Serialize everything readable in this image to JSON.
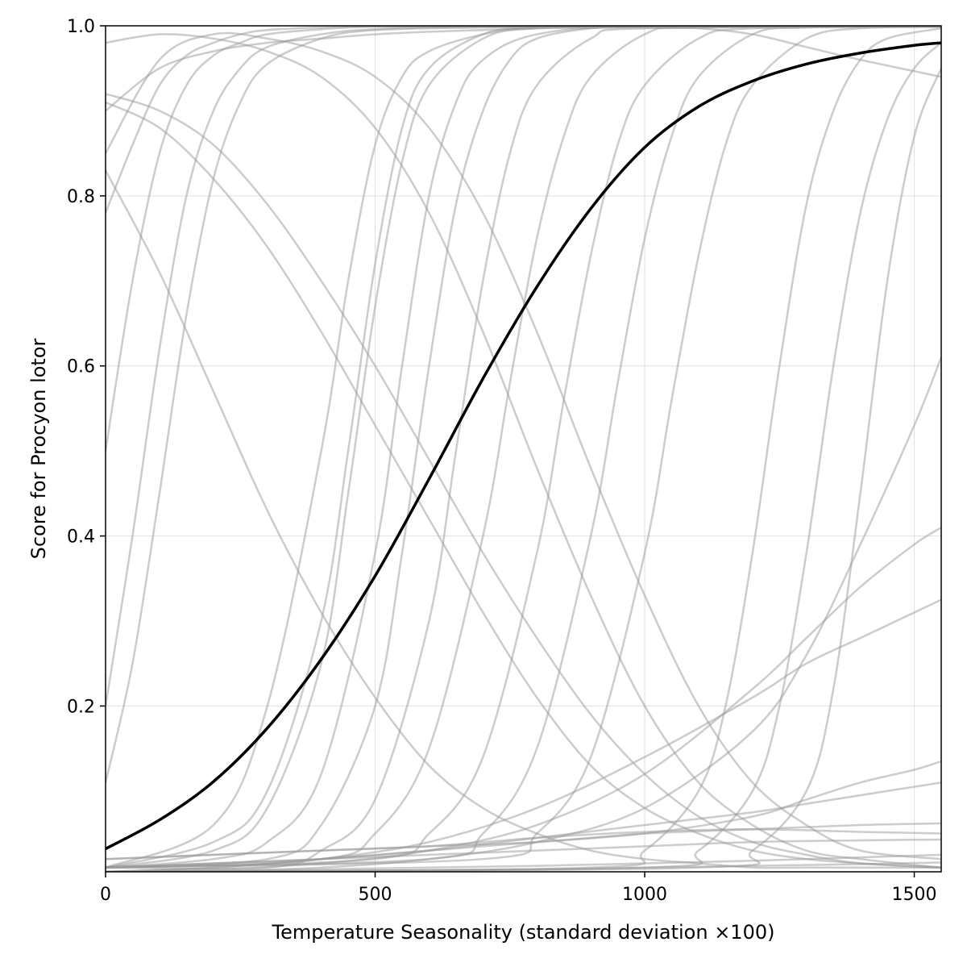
{
  "chart_data": {
    "type": "line",
    "xlabel": "Temperature Seasonality (standard deviation ×100)",
    "ylabel": "Score for Procyon lotor",
    "xlim": [
      0,
      1550
    ],
    "ylim": [
      0.005,
      1.0
    ],
    "x_ticks": [
      {
        "value": 0,
        "label": "0"
      },
      {
        "value": 500,
        "label": "500"
      },
      {
        "value": 1000,
        "label": "1000"
      },
      {
        "value": 1500,
        "label": "1500"
      }
    ],
    "y_ticks": [
      {
        "value": 0.2,
        "label": "0.2"
      },
      {
        "value": 0.4,
        "label": "0.4"
      },
      {
        "value": 0.6,
        "label": "0.6"
      },
      {
        "value": 0.8,
        "label": "0.8"
      },
      {
        "value": 1.0,
        "label": "1.0"
      }
    ],
    "grid": true,
    "mean_curve": {
      "color": "#000000",
      "x": [
        0,
        100,
        200,
        300,
        400,
        500,
        600,
        700,
        800,
        900,
        1000,
        1100,
        1200,
        1300,
        1400,
        1500,
        1550
      ],
      "y": [
        0.032,
        0.066,
        0.111,
        0.174,
        0.255,
        0.353,
        0.467,
        0.585,
        0.693,
        0.785,
        0.857,
        0.905,
        0.935,
        0.955,
        0.968,
        0.977,
        0.98
      ]
    },
    "sample_curves": {
      "color": "#9a9a9a",
      "series": [
        {
          "x": [
            0,
            50,
            100,
            150,
            200,
            250,
            300,
            400,
            500,
            700,
            900,
            1100,
            1300,
            1550
          ],
          "y": [
            0.78,
            0.86,
            0.93,
            0.965,
            0.98,
            0.99,
            0.995,
            0.998,
            0.999,
            0.999,
            0.999,
            0.999,
            0.999,
            0.999
          ]
        },
        {
          "x": [
            0,
            50,
            100,
            150,
            200,
            250,
            300,
            400,
            500,
            700,
            900,
            1100,
            1300,
            1550
          ],
          "y": [
            0.11,
            0.25,
            0.45,
            0.66,
            0.82,
            0.91,
            0.955,
            0.985,
            0.995,
            0.998,
            0.999,
            0.999,
            0.999,
            0.999
          ]
        },
        {
          "x": [
            0,
            50,
            100,
            150,
            200,
            250,
            300,
            400,
            500,
            700,
            900,
            1100,
            1300,
            1550
          ],
          "y": [
            0.2,
            0.4,
            0.62,
            0.8,
            0.9,
            0.95,
            0.975,
            0.99,
            0.996,
            0.999,
            0.999,
            0.999,
            0.999,
            0.999
          ]
        },
        {
          "x": [
            0,
            50,
            100,
            150,
            200,
            250,
            300,
            400,
            500,
            700,
            900,
            1100,
            1300,
            1550
          ],
          "y": [
            0.5,
            0.7,
            0.85,
            0.93,
            0.965,
            0.98,
            0.99,
            0.996,
            0.999,
            0.999,
            0.999,
            0.999,
            0.999,
            0.999
          ]
        },
        {
          "x": [
            0,
            100,
            200,
            300,
            400,
            500,
            600,
            700,
            800,
            900,
            1000,
            1100,
            1200,
            1300,
            1400,
            1550
          ],
          "y": [
            0.92,
            0.9,
            0.86,
            0.79,
            0.7,
            0.6,
            0.49,
            0.38,
            0.28,
            0.19,
            0.12,
            0.07,
            0.04,
            0.025,
            0.015,
            0.01
          ]
        },
        {
          "x": [
            0,
            100,
            200,
            300,
            400,
            500,
            600,
            700,
            800,
            900,
            1000,
            1100,
            1200,
            1300,
            1400,
            1550
          ],
          "y": [
            0.83,
            0.71,
            0.57,
            0.43,
            0.31,
            0.21,
            0.13,
            0.08,
            0.05,
            0.03,
            0.02,
            0.015,
            0.01,
            0.01,
            0.01,
            0.01
          ]
        },
        {
          "x": [
            0,
            100,
            200,
            300,
            400,
            500,
            600,
            700,
            800,
            900,
            1000,
            1100,
            1200,
            1300,
            1400,
            1550
          ],
          "y": [
            0.91,
            0.88,
            0.82,
            0.74,
            0.64,
            0.53,
            0.42,
            0.31,
            0.21,
            0.13,
            0.08,
            0.05,
            0.03,
            0.02,
            0.015,
            0.01
          ]
        },
        {
          "x": [
            0,
            100,
            200,
            300,
            400,
            500,
            600,
            700,
            800,
            900,
            1000,
            1100,
            1200,
            1300,
            1400,
            1550
          ],
          "y": [
            0.85,
            0.96,
            0.99,
            0.985,
            0.97,
            0.94,
            0.88,
            0.78,
            0.64,
            0.48,
            0.33,
            0.2,
            0.11,
            0.06,
            0.03,
            0.02
          ]
        },
        {
          "x": [
            0,
            100,
            200,
            300,
            400,
            500,
            600,
            700,
            800,
            900,
            1000,
            1100,
            1200,
            1300,
            1400,
            1550
          ],
          "y": [
            0.98,
            0.99,
            0.985,
            0.97,
            0.94,
            0.88,
            0.78,
            0.64,
            0.48,
            0.33,
            0.2,
            0.11,
            0.06,
            0.03,
            0.02,
            0.01
          ]
        },
        {
          "x": [
            0,
            100,
            200,
            300,
            400,
            500,
            600,
            700,
            800,
            900,
            1000,
            1100,
            1200,
            1300,
            1400,
            1550
          ],
          "y": [
            0.9,
            0.95,
            0.97,
            0.98,
            0.985,
            0.99,
            0.993,
            0.995,
            0.997,
            0.998,
            0.998,
            0.997,
            0.99,
            0.975,
            0.96,
            0.94
          ]
        },
        {
          "x": [
            0,
            200,
            300,
            400,
            450,
            500,
            550,
            600,
            700,
            800,
            1000,
            1550
          ],
          "y": [
            0.01,
            0.04,
            0.1,
            0.3,
            0.5,
            0.72,
            0.88,
            0.95,
            0.99,
            0.998,
            0.999,
            0.999
          ]
        },
        {
          "x": [
            0,
            200,
            300,
            400,
            450,
            500,
            550,
            600,
            700,
            800,
            1000,
            1550
          ],
          "y": [
            0.01,
            0.06,
            0.2,
            0.5,
            0.7,
            0.86,
            0.94,
            0.97,
            0.99,
            0.998,
            0.999,
            0.999
          ]
        },
        {
          "x": [
            0,
            200,
            300,
            400,
            450,
            500,
            550,
            600,
            700,
            800,
            1000,
            1550
          ],
          "y": [
            0.01,
            0.03,
            0.08,
            0.25,
            0.45,
            0.67,
            0.84,
            0.93,
            0.985,
            0.997,
            0.999,
            0.999
          ]
        },
        {
          "x": [
            0,
            200,
            300,
            400,
            500,
            550,
            600,
            650,
            700,
            800,
            1000,
            1550
          ],
          "y": [
            0.01,
            0.02,
            0.04,
            0.12,
            0.38,
            0.6,
            0.8,
            0.91,
            0.96,
            0.99,
            0.999,
            0.999
          ]
        },
        {
          "x": [
            0,
            300,
            400,
            500,
            550,
            600,
            650,
            700,
            750,
            800,
            900,
            1000,
            1550
          ],
          "y": [
            0.01,
            0.02,
            0.06,
            0.2,
            0.38,
            0.6,
            0.79,
            0.9,
            0.96,
            0.985,
            0.997,
            0.999,
            0.999
          ]
        },
        {
          "x": [
            0,
            300,
            400,
            500,
            600,
            650,
            700,
            750,
            800,
            900,
            1000,
            1550
          ],
          "y": [
            0.01,
            0.01,
            0.03,
            0.09,
            0.3,
            0.5,
            0.7,
            0.85,
            0.93,
            0.985,
            0.997,
            0.999
          ]
        },
        {
          "x": [
            0,
            400,
            500,
            600,
            700,
            750,
            800,
            850,
            900,
            1000,
            1100,
            1550
          ],
          "y": [
            0.01,
            0.02,
            0.05,
            0.15,
            0.4,
            0.58,
            0.75,
            0.87,
            0.94,
            0.99,
            0.998,
            0.999
          ]
        },
        {
          "x": [
            0,
            500,
            600,
            700,
            800,
            850,
            900,
            950,
            1000,
            1100,
            1200,
            1550
          ],
          "y": [
            0.01,
            0.02,
            0.05,
            0.14,
            0.38,
            0.56,
            0.73,
            0.86,
            0.93,
            0.985,
            0.997,
            0.999
          ]
        },
        {
          "x": [
            0,
            600,
            700,
            800,
            900,
            950,
            1000,
            1050,
            1100,
            1200,
            1300,
            1550
          ],
          "y": [
            0.01,
            0.02,
            0.05,
            0.15,
            0.4,
            0.58,
            0.75,
            0.87,
            0.94,
            0.99,
            0.998,
            0.999
          ]
        },
        {
          "x": [
            0,
            700,
            800,
            900,
            1000,
            1050,
            1100,
            1150,
            1200,
            1300,
            1400,
            1550
          ],
          "y": [
            0.01,
            0.02,
            0.05,
            0.14,
            0.38,
            0.56,
            0.73,
            0.86,
            0.93,
            0.985,
            0.997,
            0.999
          ]
        },
        {
          "x": [
            0,
            900,
            1000,
            1100,
            1150,
            1200,
            1250,
            1300,
            1350,
            1400,
            1450,
            1550
          ],
          "y": [
            0.005,
            0.01,
            0.03,
            0.1,
            0.2,
            0.38,
            0.6,
            0.79,
            0.9,
            0.96,
            0.985,
            0.997
          ]
        },
        {
          "x": [
            0,
            1000,
            1100,
            1200,
            1250,
            1300,
            1350,
            1400,
            1450,
            1500,
            1550
          ],
          "y": [
            0.005,
            0.01,
            0.03,
            0.1,
            0.2,
            0.38,
            0.6,
            0.78,
            0.89,
            0.95,
            0.98
          ]
        },
        {
          "x": [
            0,
            1100,
            1200,
            1300,
            1350,
            1400,
            1450,
            1500,
            1550
          ],
          "y": [
            0.005,
            0.01,
            0.03,
            0.1,
            0.22,
            0.45,
            0.7,
            0.87,
            0.95
          ]
        },
        {
          "x": [
            0,
            200,
            400,
            600,
            800,
            1000,
            1200,
            1300,
            1400,
            1500,
            1550
          ],
          "y": [
            0.005,
            0.006,
            0.01,
            0.02,
            0.04,
            0.08,
            0.17,
            0.26,
            0.39,
            0.53,
            0.61
          ]
        },
        {
          "x": [
            0,
            200,
            400,
            600,
            800,
            1000,
            1200,
            1300,
            1400,
            1500,
            1550
          ],
          "y": [
            0.005,
            0.008,
            0.015,
            0.03,
            0.06,
            0.12,
            0.22,
            0.28,
            0.34,
            0.39,
            0.41
          ]
        },
        {
          "x": [
            0,
            200,
            400,
            600,
            800,
            1000,
            1200,
            1300,
            1400,
            1500,
            1550
          ],
          "y": [
            0.005,
            0.01,
            0.02,
            0.04,
            0.08,
            0.14,
            0.21,
            0.25,
            0.28,
            0.31,
            0.325
          ]
        },
        {
          "x": [
            0,
            200,
            400,
            600,
            800,
            1000,
            1200,
            1300,
            1400,
            1500,
            1550
          ],
          "y": [
            0.01,
            0.015,
            0.02,
            0.03,
            0.04,
            0.05,
            0.07,
            0.09,
            0.11,
            0.125,
            0.135
          ]
        },
        {
          "x": [
            0,
            200,
            400,
            600,
            800,
            1000,
            1200,
            1300,
            1400,
            1500,
            1550
          ],
          "y": [
            0.005,
            0.01,
            0.02,
            0.03,
            0.045,
            0.06,
            0.075,
            0.085,
            0.095,
            0.105,
            0.11
          ]
        },
        {
          "x": [
            0,
            200,
            400,
            600,
            800,
            1000,
            1200,
            1400,
            1550
          ],
          "y": [
            0.02,
            0.025,
            0.03,
            0.035,
            0.04,
            0.05,
            0.055,
            0.06,
            0.062
          ]
        },
        {
          "x": [
            0,
            200,
            400,
            600,
            800,
            1000,
            1200,
            1400,
            1550
          ],
          "y": [
            0.02,
            0.025,
            0.03,
            0.035,
            0.045,
            0.052,
            0.055,
            0.052,
            0.05
          ]
        },
        {
          "x": [
            0,
            200,
            400,
            600,
            800,
            1000,
            1200,
            1400,
            1550
          ],
          "y": [
            0.01,
            0.015,
            0.02,
            0.025,
            0.03,
            0.035,
            0.04,
            0.042,
            0.043
          ]
        },
        {
          "x": [
            0,
            200,
            400,
            600,
            800,
            1000,
            1200,
            1400,
            1550
          ],
          "y": [
            0.005,
            0.006,
            0.008,
            0.01,
            0.012,
            0.015,
            0.018,
            0.022,
            0.025
          ]
        },
        {
          "x": [
            0,
            200,
            400,
            600,
            800,
            1000,
            1200,
            1400,
            1550
          ],
          "y": [
            0.005,
            0.005,
            0.006,
            0.007,
            0.008,
            0.01,
            0.012,
            0.014,
            0.016
          ]
        }
      ]
    }
  }
}
